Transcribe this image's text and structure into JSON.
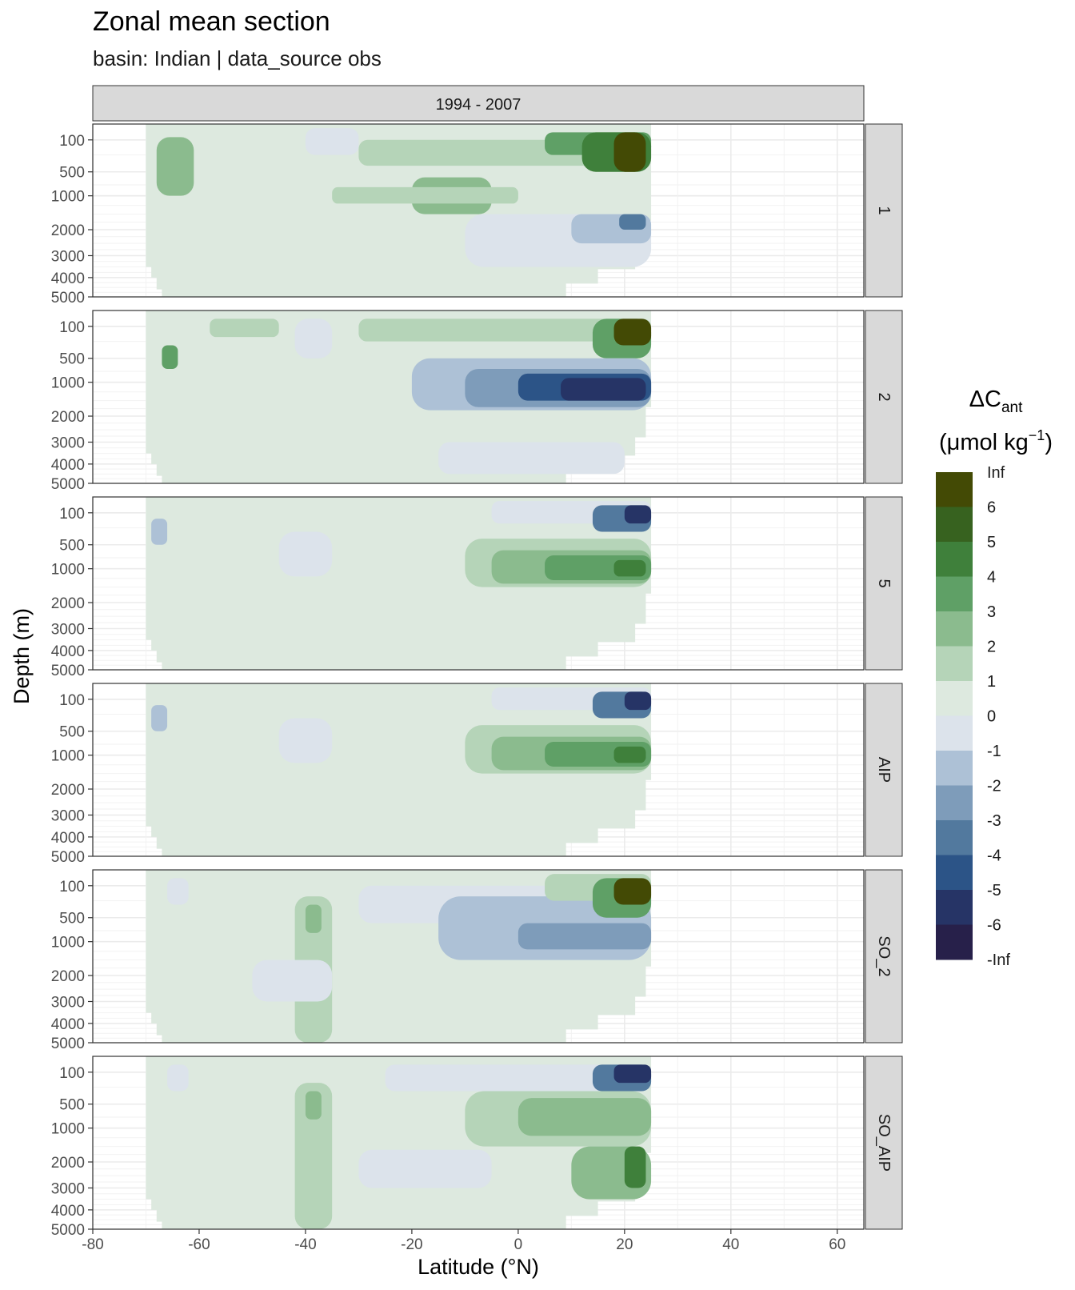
{
  "title": "Zonal mean section",
  "subtitle": "basin: Indian | data_source obs",
  "chart_data": {
    "type": "heatmap",
    "column_facet": "1994 - 2007",
    "row_facets": [
      "1",
      "2",
      "5",
      "AIP",
      "SO_2",
      "SO_AIP"
    ],
    "xlabel": "Latitude (°N)",
    "ylabel": "Depth (m)",
    "xlim": [
      -80,
      65
    ],
    "x_ticks": [
      -80,
      -60,
      -40,
      -20,
      0,
      20,
      40,
      60
    ],
    "y_scale": "sqrt-reversed",
    "y_ticks": [
      100,
      500,
      1000,
      2000,
      3000,
      4000,
      5000
    ],
    "data_lat_range": [
      -70,
      25
    ],
    "legend": {
      "position": "right",
      "title_main": "ΔC",
      "title_sub": "ant",
      "unit_pre": "(μmol kg",
      "unit_sup": "−1",
      "unit_post": ")",
      "breaks": [
        "Inf",
        "6",
        "5",
        "4",
        "3",
        "2",
        "1",
        "0",
        "-1",
        "-2",
        "-3",
        "-4",
        "-5",
        "-6",
        "-Inf"
      ],
      "colors": [
        "#434A05",
        "#37621F",
        "#3F803B",
        "#5FA066",
        "#8BBB8E",
        "#B5D4B8",
        "#DDE9DF",
        "#DCE3EB",
        "#ADC1D6",
        "#7E9CBA",
        "#52799E",
        "#2C5487",
        "#263466",
        "#27204A"
      ]
    },
    "sections": [
      {
        "label": "1",
        "features": [
          {
            "lat": [
              -66,
              -63
            ],
            "depth": [
              150,
              600
            ],
            "class": 3
          },
          {
            "lat": [
              -68,
              -61
            ],
            "depth": [
              80,
              1000
            ],
            "class": 2
          },
          {
            "lat": [
              -40,
              -30
            ],
            "depth": [
              30,
              250
            ],
            "class": -1
          },
          {
            "lat": [
              -30,
              25
            ],
            "depth": [
              100,
              400
            ],
            "class": 1
          },
          {
            "lat": [
              -20,
              -5
            ],
            "depth": [
              600,
              1500
            ],
            "class": 2
          },
          {
            "lat": [
              5,
              25
            ],
            "depth": [
              50,
              250
            ],
            "class": 3
          },
          {
            "lat": [
              12,
              25
            ],
            "depth": [
              50,
              500
            ],
            "class": 4
          },
          {
            "lat": [
              18,
              24
            ],
            "depth": [
              50,
              500
            ],
            "class": 6
          },
          {
            "lat": [
              -35,
              0
            ],
            "depth": [
              800,
              1200
            ],
            "class": 1
          },
          {
            "lat": [
              -10,
              25
            ],
            "depth": [
              1500,
              3500
            ],
            "class": -1
          },
          {
            "lat": [
              10,
              25
            ],
            "depth": [
              1500,
              2500
            ],
            "class": -2
          },
          {
            "lat": [
              19,
              24
            ],
            "depth": [
              1500,
              2000
            ],
            "class": -4
          }
        ]
      },
      {
        "label": "2",
        "features": [
          {
            "lat": [
              -67,
              -64
            ],
            "depth": [
              300,
              700
            ],
            "class": 3
          },
          {
            "lat": [
              -58,
              -45
            ],
            "depth": [
              50,
              200
            ],
            "class": 1
          },
          {
            "lat": [
              -42,
              -35
            ],
            "depth": [
              50,
              500
            ],
            "class": -1
          },
          {
            "lat": [
              -30,
              25
            ],
            "depth": [
              50,
              250
            ],
            "class": 1
          },
          {
            "lat": [
              14,
              25
            ],
            "depth": [
              50,
              500
            ],
            "class": 3
          },
          {
            "lat": [
              18,
              25
            ],
            "depth": [
              50,
              300
            ],
            "class": 6
          },
          {
            "lat": [
              -20,
              25
            ],
            "depth": [
              500,
              1800
            ],
            "class": -2
          },
          {
            "lat": [
              -10,
              25
            ],
            "depth": [
              700,
              1700
            ],
            "class": -3
          },
          {
            "lat": [
              0,
              25
            ],
            "depth": [
              800,
              1500
            ],
            "class": -5
          },
          {
            "lat": [
              8,
              24
            ],
            "depth": [
              900,
              1500
            ],
            "class": -6
          },
          {
            "lat": [
              -15,
              20
            ],
            "depth": [
              3000,
              4500
            ],
            "class": -1
          }
        ]
      },
      {
        "label": "5",
        "features": [
          {
            "lat": [
              -69,
              -66
            ],
            "depth": [
              150,
              500
            ],
            "class": -2
          },
          {
            "lat": [
              -45,
              -35
            ],
            "depth": [
              300,
              1200
            ],
            "class": -1
          },
          {
            "lat": [
              -5,
              25
            ],
            "depth": [
              30,
              200
            ],
            "class": -1
          },
          {
            "lat": [
              14,
              25
            ],
            "depth": [
              50,
              300
            ],
            "class": -4
          },
          {
            "lat": [
              20,
              25
            ],
            "depth": [
              50,
              200
            ],
            "class": -6
          },
          {
            "lat": [
              20,
              24
            ],
            "depth": [
              500,
              800
            ],
            "class": -6
          },
          {
            "lat": [
              -10,
              25
            ],
            "depth": [
              400,
              1500
            ],
            "class": 1
          },
          {
            "lat": [
              -5,
              25
            ],
            "depth": [
              600,
              1400
            ],
            "class": 2
          },
          {
            "lat": [
              5,
              25
            ],
            "depth": [
              700,
              1300
            ],
            "class": 3
          },
          {
            "lat": [
              18,
              24
            ],
            "depth": [
              800,
              1200
            ],
            "class": 4
          }
        ]
      },
      {
        "label": "AIP",
        "features": [
          {
            "lat": [
              -69,
              -66
            ],
            "depth": [
              150,
              500
            ],
            "class": -2
          },
          {
            "lat": [
              -45,
              -35
            ],
            "depth": [
              300,
              1200
            ],
            "class": -1
          },
          {
            "lat": [
              -5,
              25
            ],
            "depth": [
              30,
              200
            ],
            "class": -1
          },
          {
            "lat": [
              14,
              25
            ],
            "depth": [
              50,
              300
            ],
            "class": -4
          },
          {
            "lat": [
              20,
              25
            ],
            "depth": [
              50,
              200
            ],
            "class": -6
          },
          {
            "lat": [
              20,
              24
            ],
            "depth": [
              500,
              800
            ],
            "class": -6
          },
          {
            "lat": [
              -10,
              25
            ],
            "depth": [
              400,
              1500
            ],
            "class": 1
          },
          {
            "lat": [
              -5,
              25
            ],
            "depth": [
              600,
              1400
            ],
            "class": 2
          },
          {
            "lat": [
              5,
              25
            ],
            "depth": [
              700,
              1300
            ],
            "class": 3
          },
          {
            "lat": [
              18,
              24
            ],
            "depth": [
              800,
              1200
            ],
            "class": 4
          }
        ]
      },
      {
        "label": "SO_2",
        "features": [
          {
            "lat": [
              -66,
              -62
            ],
            "depth": [
              50,
              300
            ],
            "class": -1
          },
          {
            "lat": [
              -42,
              -35
            ],
            "depth": [
              200,
              5000
            ],
            "class": 1
          },
          {
            "lat": [
              -40,
              -37
            ],
            "depth": [
              300,
              800
            ],
            "class": 2
          },
          {
            "lat": [
              -30,
              25
            ],
            "depth": [
              100,
              600
            ],
            "class": -1
          },
          {
            "lat": [
              -15,
              25
            ],
            "depth": [
              200,
              1500
            ],
            "class": -2
          },
          {
            "lat": [
              0,
              25
            ],
            "depth": [
              600,
              1200
            ],
            "class": -3
          },
          {
            "lat": [
              5,
              25
            ],
            "depth": [
              30,
              250
            ],
            "class": 1
          },
          {
            "lat": [
              14,
              25
            ],
            "depth": [
              50,
              500
            ],
            "class": 3
          },
          {
            "lat": [
              18,
              25
            ],
            "depth": [
              50,
              300
            ],
            "class": 6
          },
          {
            "lat": [
              -50,
              -35
            ],
            "depth": [
              1500,
              3000
            ],
            "class": -1
          }
        ]
      },
      {
        "label": "SO_AIP",
        "features": [
          {
            "lat": [
              -66,
              -62
            ],
            "depth": [
              50,
              300
            ],
            "class": -1
          },
          {
            "lat": [
              -42,
              -35
            ],
            "depth": [
              200,
              5000
            ],
            "class": 1
          },
          {
            "lat": [
              -40,
              -37
            ],
            "depth": [
              300,
              800
            ],
            "class": 2
          },
          {
            "lat": [
              -25,
              25
            ],
            "depth": [
              50,
              300
            ],
            "class": -1
          },
          {
            "lat": [
              14,
              25
            ],
            "depth": [
              50,
              300
            ],
            "class": -4
          },
          {
            "lat": [
              18,
              25
            ],
            "depth": [
              50,
              200
            ],
            "class": -6
          },
          {
            "lat": [
              -10,
              25
            ],
            "depth": [
              300,
              1500
            ],
            "class": 1
          },
          {
            "lat": [
              0,
              25
            ],
            "depth": [
              400,
              1200
            ],
            "class": 2
          },
          {
            "lat": [
              10,
              25
            ],
            "depth": [
              1500,
              3500
            ],
            "class": 2
          },
          {
            "lat": [
              20,
              24
            ],
            "depth": [
              1500,
              3000
            ],
            "class": 4
          },
          {
            "lat": [
              -30,
              -5
            ],
            "depth": [
              1600,
              3000
            ],
            "class": -1
          }
        ]
      }
    ]
  }
}
